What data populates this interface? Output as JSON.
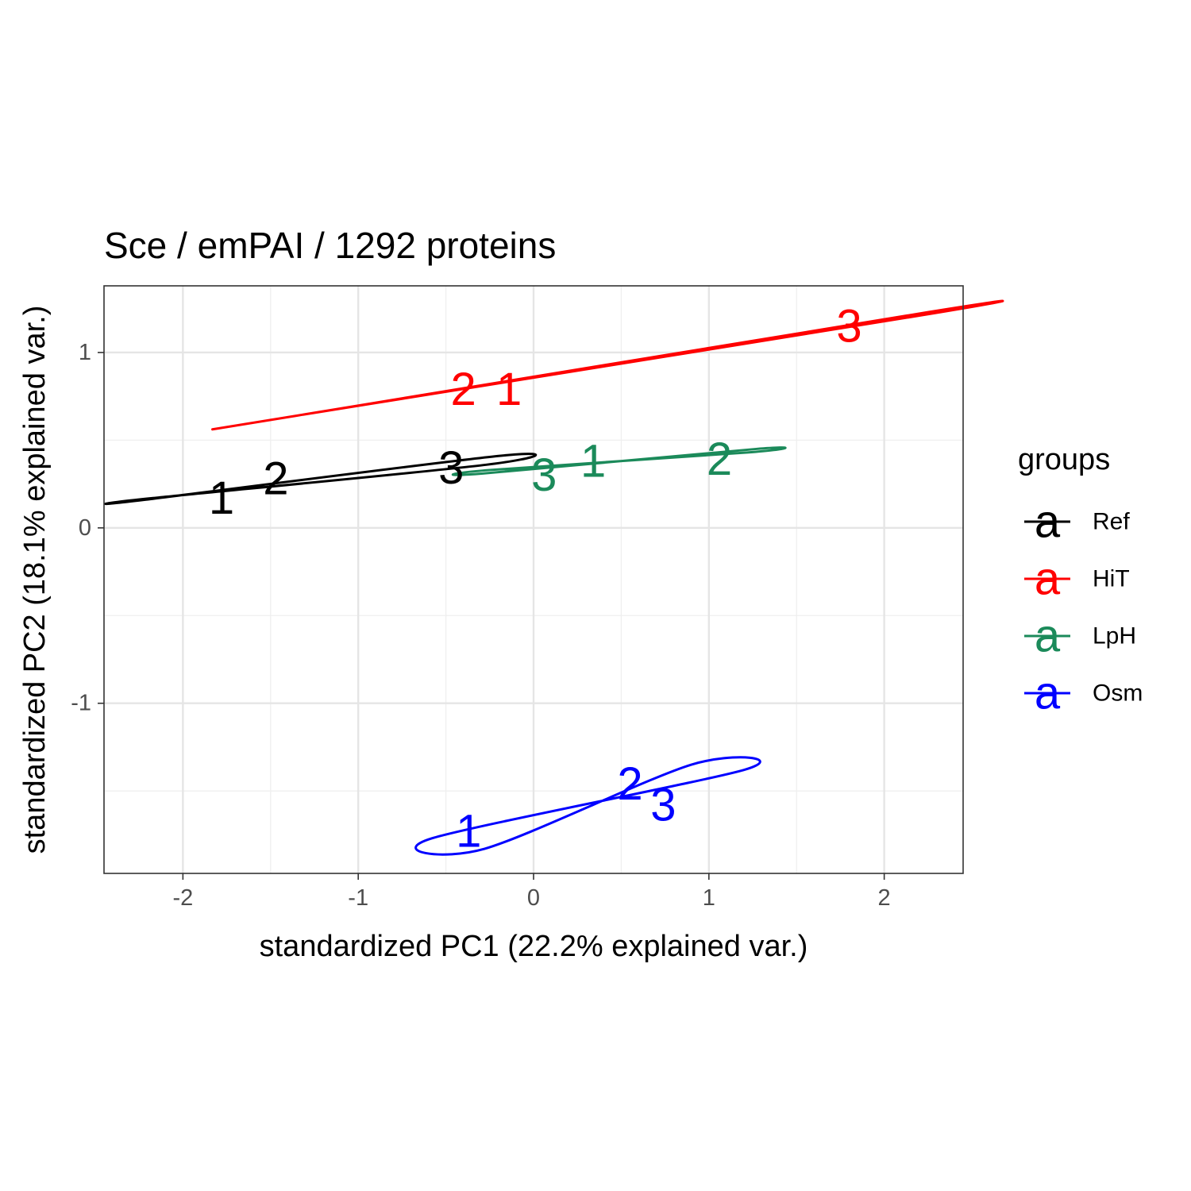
{
  "chart_data": {
    "type": "scatter",
    "title": "Sce / emPAI / 1292  proteins",
    "xlabel": "standardized PC1 (22.2% explained var.)",
    "ylabel": "standardized PC2 (18.1% explained var.)",
    "xlim": [
      -2.45,
      2.45
    ],
    "ylim": [
      -1.97,
      1.38
    ],
    "x_ticks": [
      -2,
      -1,
      0,
      1,
      2
    ],
    "y_ticks": [
      -1,
      0,
      1
    ],
    "x_tick_labels": [
      "-2",
      "-1",
      "0",
      "1",
      "2"
    ],
    "y_tick_labels": [
      "-1",
      "0",
      "1"
    ],
    "grid": true,
    "legend": {
      "title": "groups",
      "placement": "right",
      "key_glyph": "a"
    },
    "series": [
      {
        "name": "Ref",
        "color": "#000000",
        "points": [
          {
            "label": "1",
            "x": -1.78,
            "y": 0.17
          },
          {
            "label": "2",
            "x": -1.47,
            "y": 0.28
          },
          {
            "label": "3",
            "x": -0.47,
            "y": 0.34
          }
        ],
        "ellipse": [
          [
            -2.22,
            0.16
          ],
          [
            -0.2,
            0.41
          ],
          [
            -0.27,
            0.36
          ],
          [
            -2.17,
            0.17
          ]
        ]
      },
      {
        "name": "HiT",
        "color": "#ff0000",
        "points": [
          {
            "label": "2",
            "x": -0.4,
            "y": 0.79
          },
          {
            "label": "1",
            "x": -0.14,
            "y": 0.79
          },
          {
            "label": "3",
            "x": 1.8,
            "y": 1.15
          }
        ],
        "ellipse": [
          [
            -1.41,
            0.63
          ],
          [
            2.25,
            1.23
          ],
          [
            2.2,
            1.21
          ],
          [
            -1.35,
            0.64
          ]
        ]
      },
      {
        "name": "LpH",
        "color": "#1b8a5a",
        "points": [
          {
            "label": "3",
            "x": 0.06,
            "y": 0.3
          },
          {
            "label": "1",
            "x": 0.34,
            "y": 0.38
          },
          {
            "label": "2",
            "x": 1.06,
            "y": 0.39
          }
        ],
        "ellipse": [
          [
            -0.29,
            0.31
          ],
          [
            1.27,
            0.45
          ],
          [
            1.22,
            0.43
          ],
          [
            -0.25,
            0.33
          ]
        ]
      },
      {
        "name": "Osm",
        "color": "#0000ff",
        "points": [
          {
            "label": "1",
            "x": -0.37,
            "y": -1.73
          },
          {
            "label": "2",
            "x": 0.55,
            "y": -1.46
          },
          {
            "label": "3",
            "x": 0.74,
            "y": -1.58
          }
        ],
        "ellipse": [
          [
            -0.58,
            -1.77
          ],
          [
            1.2,
            -1.38
          ],
          [
            0.9,
            -1.35
          ],
          [
            -0.28,
            -1.83
          ]
        ]
      }
    ]
  }
}
